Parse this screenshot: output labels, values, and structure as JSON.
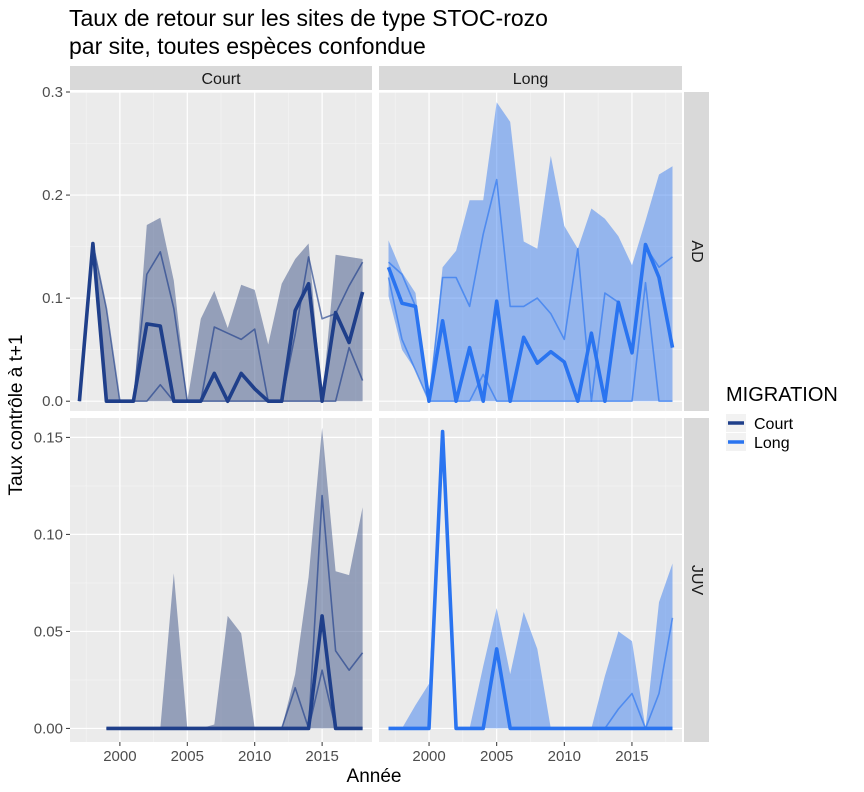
{
  "chart_data": {
    "type": "line",
    "title": "Taux de retour sur les sites de type STOC-rozo",
    "subtitle": "par site, toutes espèces confondue",
    "xlabel": "Année",
    "ylabel": "Taux contrôle à t+1",
    "x_ticks": [
      2000,
      2005,
      2010,
      2015
    ],
    "xlim": [
      1996.3,
      2018.7
    ],
    "grid": true,
    "legend": {
      "title": "MIGRATION",
      "position": "right",
      "entries": [
        {
          "label": "Court",
          "color": "#1f3f8a"
        },
        {
          "label": "Long",
          "color": "#2a74f0"
        }
      ]
    },
    "facet_cols": [
      "Court",
      "Long"
    ],
    "facet_rows": [
      "AD",
      "JUV"
    ],
    "colors": {
      "Court": {
        "line": "#1f3f8a",
        "ribbon": "#4d6190",
        "ribbon_opacity": 0.55
      },
      "Long": {
        "line": "#2a74f0",
        "ribbon": "#2a74f0",
        "ribbon_opacity": 0.45
      },
      "panel_bg": "#ebebeb",
      "strip_bg": "#d9d9d9",
      "grid_major": "#ffffff"
    },
    "rows": {
      "AD": {
        "ylim": [
          -0.0095,
          0.3
        ],
        "y_ticks": [
          0.0,
          0.1,
          0.2,
          0.3
        ],
        "y_tick_labels": [
          "0.0",
          "0.1",
          "0.2",
          "0.3"
        ]
      },
      "JUV": {
        "ylim": [
          -0.007,
          0.16
        ],
        "y_ticks": [
          0.0,
          0.05,
          0.1,
          0.15
        ],
        "y_tick_labels": [
          "0.00",
          "0.05",
          "0.10",
          "0.15"
        ]
      }
    },
    "panels": [
      {
        "row": "AD",
        "col": "Court",
        "migration": "Court",
        "x": [
          1997,
          1998,
          1999,
          2000,
          2001,
          2002,
          2003,
          2004,
          2005,
          2006,
          2007,
          2008,
          2009,
          2010,
          2011,
          2012,
          2013,
          2014,
          2015,
          2016,
          2017,
          2018
        ],
        "mean": [
          0.0,
          0.153,
          0.0,
          0.0,
          0.0,
          0.075,
          0.073,
          0.0,
          0.0,
          0.0,
          0.027,
          0.0,
          0.027,
          0.012,
          0.0,
          0.0,
          0.088,
          0.114,
          0.0,
          0.086,
          0.057,
          0.106
        ],
        "upper": [
          0.0,
          0.153,
          0.09,
          0.0,
          0.0,
          0.171,
          0.178,
          0.117,
          0.0,
          0.08,
          0.107,
          0.071,
          0.113,
          0.108,
          0.055,
          0.114,
          0.138,
          0.153,
          0.0,
          0.142,
          0.14,
          0.138
        ],
        "lower": [
          0.0,
          0.153,
          0.0,
          0.0,
          0.0,
          0.0,
          0.0,
          0.0,
          0.0,
          0.0,
          0.0,
          0.0,
          0.0,
          0.0,
          0.0,
          0.0,
          0.0,
          0.0,
          0.0,
          0.0,
          0.0,
          0.0
        ],
        "site_lines": [
          [
            0.0,
            0.153,
            0.09,
            0.0,
            0.0,
            0.123,
            0.145,
            0.09,
            0.0,
            0.0,
            0.072,
            0.066,
            0.06,
            0.07,
            0.0,
            0.0,
            0.065,
            0.14,
            0.08,
            0.085,
            0.112,
            0.135
          ],
          [
            0.0,
            0.153,
            0.0,
            0.0,
            0.0,
            0.0,
            0.016,
            0.0,
            0.0,
            0.0,
            0.0,
            0.0,
            0.0,
            0.0,
            0.0,
            0.0,
            0.0,
            0.0,
            0.0,
            0.0,
            0.052,
            0.02
          ]
        ]
      },
      {
        "row": "AD",
        "col": "Long",
        "migration": "Long",
        "x": [
          1997,
          1998,
          1999,
          2000,
          2001,
          2002,
          2003,
          2004,
          2005,
          2006,
          2007,
          2008,
          2009,
          2010,
          2011,
          2012,
          2013,
          2014,
          2015,
          2016,
          2017,
          2018
        ],
        "mean": [
          0.13,
          0.095,
          0.092,
          0.0,
          0.078,
          0.0,
          0.052,
          0.0,
          0.097,
          0.0,
          0.062,
          0.037,
          0.048,
          0.038,
          0.0,
          0.066,
          0.0,
          0.096,
          0.047,
          0.152,
          0.12,
          0.052
        ],
        "upper": [
          0.156,
          0.125,
          0.105,
          0.0,
          0.13,
          0.146,
          0.195,
          0.195,
          0.29,
          0.271,
          0.155,
          0.148,
          0.238,
          0.17,
          0.148,
          0.187,
          0.177,
          0.16,
          0.132,
          0.175,
          0.22,
          0.228
        ],
        "lower": [
          0.102,
          0.05,
          0.03,
          0.0,
          0.0,
          0.0,
          0.0,
          0.0,
          0.0,
          0.0,
          0.0,
          0.0,
          0.0,
          0.0,
          0.0,
          0.0,
          0.0,
          0.0,
          0.0,
          0.0,
          0.0,
          0.0
        ],
        "site_lines": [
          [
            0.135,
            0.123,
            0.092,
            0.0,
            0.12,
            0.12,
            0.092,
            0.162,
            0.215,
            0.092,
            0.092,
            0.1,
            0.085,
            0.06,
            0.148,
            0.0,
            0.105,
            0.096,
            0.046,
            0.15,
            0.13,
            0.14
          ],
          [
            0.12,
            0.06,
            0.03,
            0.0,
            0.0,
            0.0,
            0.0,
            0.026,
            0.0,
            0.0,
            0.0,
            0.0,
            0.0,
            0.0,
            0.0,
            0.0,
            0.0,
            0.0,
            0.0,
            0.115,
            0.0,
            0.0
          ]
        ]
      },
      {
        "row": "JUV",
        "col": "Court",
        "migration": "Court",
        "x": [
          1999,
          2000,
          2001,
          2002,
          2003,
          2004,
          2005,
          2006,
          2007,
          2008,
          2009,
          2010,
          2011,
          2012,
          2013,
          2014,
          2015,
          2016,
          2017,
          2018
        ],
        "mean": [
          0.0,
          0.0,
          0.0,
          0.0,
          0.0,
          0.0,
          0.0,
          0.0,
          0.0,
          0.0,
          0.0,
          0.0,
          0.0,
          0.0,
          0.0,
          0.0,
          0.058,
          0.0,
          0.0,
          0.0
        ],
        "upper": [
          0.0,
          0.0,
          0.0,
          0.0,
          0.0,
          0.08,
          0.0,
          0.0,
          0.002,
          0.058,
          0.049,
          0.0,
          0.0,
          0.0,
          0.028,
          0.078,
          0.155,
          0.081,
          0.079,
          0.114
        ],
        "lower": [
          0.0,
          0.0,
          0.0,
          0.0,
          0.0,
          0.0,
          0.0,
          0.0,
          0.0,
          0.0,
          0.0,
          0.0,
          0.0,
          0.0,
          0.0,
          0.0,
          0.0,
          0.0,
          0.0,
          0.0
        ],
        "site_lines": [
          [
            0.0,
            0.0,
            0.0,
            0.0,
            0.0,
            0.0,
            0.0,
            0.0,
            0.0,
            0.0,
            0.0,
            0.0,
            0.0,
            0.0,
            0.021,
            0.0,
            0.12,
            0.04,
            0.03,
            0.039
          ],
          [
            0.0,
            0.0,
            0.0,
            0.0,
            0.0,
            0.0,
            0.0,
            0.0,
            0.0,
            0.0,
            0.0,
            0.0,
            0.0,
            0.0,
            0.0,
            0.0,
            0.03,
            0.0,
            0.0,
            0.0
          ]
        ]
      },
      {
        "row": "JUV",
        "col": "Long",
        "migration": "Long",
        "x": [
          1997,
          1998,
          1999,
          2000,
          2001,
          2002,
          2003,
          2004,
          2005,
          2006,
          2007,
          2008,
          2009,
          2010,
          2011,
          2012,
          2013,
          2014,
          2015,
          2016,
          2017,
          2018
        ],
        "mean": [
          0.0,
          0.0,
          0.0,
          0.0,
          0.153,
          0.0,
          0.0,
          0.0,
          0.041,
          0.0,
          0.0,
          0.0,
          0.0,
          0.0,
          0.0,
          0.0,
          0.0,
          0.0,
          0.0,
          0.0,
          0.0,
          0.0
        ],
        "upper": [
          0.0,
          0.0,
          0.012,
          0.023,
          0.153,
          0.0,
          0.0,
          0.032,
          0.062,
          0.028,
          0.06,
          0.041,
          0.0,
          0.0,
          0.0,
          0.0,
          0.027,
          0.05,
          0.045,
          0.0,
          0.065,
          0.085
        ],
        "lower": [
          0.0,
          0.0,
          0.0,
          0.0,
          0.153,
          0.0,
          0.0,
          0.0,
          0.0,
          0.0,
          0.0,
          0.0,
          0.0,
          0.0,
          0.0,
          0.0,
          0.0,
          0.0,
          0.0,
          0.0,
          0.0,
          0.0
        ],
        "site_lines": [
          [
            0.0,
            0.0,
            0.0,
            0.0,
            0.153,
            0.0,
            0.0,
            0.0,
            0.041,
            0.0,
            0.0,
            0.0,
            0.0,
            0.0,
            0.0,
            0.0,
            0.0,
            0.01,
            0.018,
            0.0,
            0.018,
            0.057
          ]
        ]
      }
    ]
  }
}
